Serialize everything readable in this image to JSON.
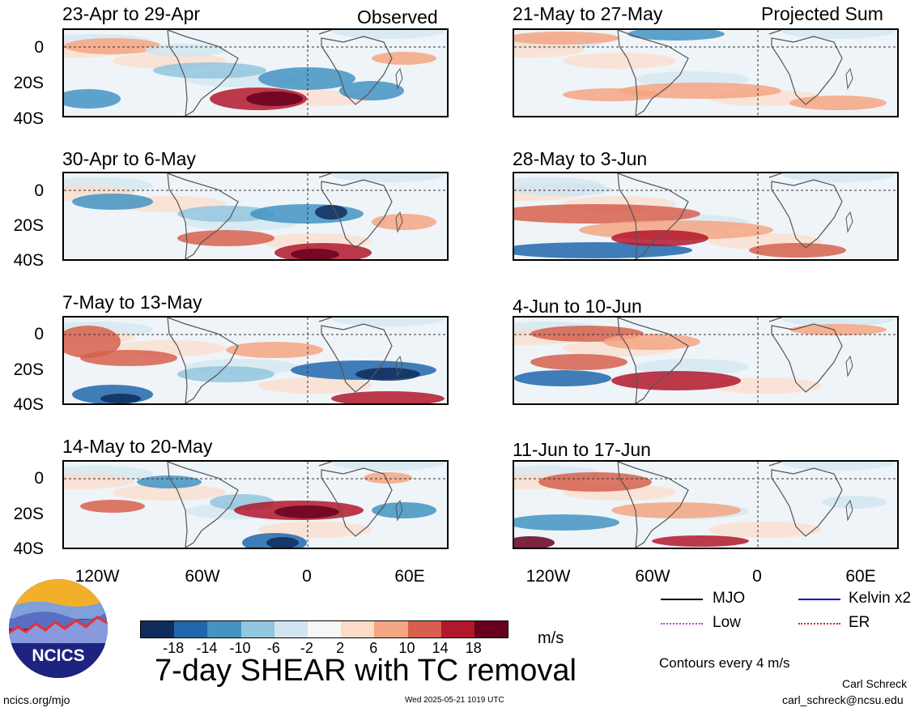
{
  "header": {
    "left": "Observed",
    "right": "Projected Sum"
  },
  "panels_left": [
    {
      "title": "23-Apr to 29-Apr"
    },
    {
      "title": "30-Apr to 6-May"
    },
    {
      "title": "7-May to 13-May"
    },
    {
      "title": "14-May to 20-May"
    }
  ],
  "panels_right": [
    {
      "title": "21-May to 27-May"
    },
    {
      "title": "28-May to 3-Jun"
    },
    {
      "title": "4-Jun to 10-Jun"
    },
    {
      "title": "11-Jun to 17-Jun"
    }
  ],
  "yaxis": [
    "0",
    "20S",
    "40S"
  ],
  "xaxis": [
    "120W",
    "60W",
    "0",
    "60E"
  ],
  "legend": [
    {
      "label": "MJO",
      "color": "#000000"
    },
    {
      "label": "Kelvin x2",
      "color": "#0000cc"
    },
    {
      "label": "Low",
      "color": "#aa44dd"
    },
    {
      "label": "ER",
      "color": "#dd2222"
    }
  ],
  "colorbar": {
    "colors": [
      "#0f2d5c",
      "#2166ac",
      "#4393c3",
      "#92c5de",
      "#d1e5f0",
      "#f7f7f7",
      "#fddbc7",
      "#f4a582",
      "#d6604d",
      "#b2182b",
      "#67001f"
    ],
    "ticks": [
      "-18",
      "-14",
      "-10",
      "-6",
      "-2",
      "2",
      "6",
      "10",
      "14",
      "18"
    ],
    "units": "m/s"
  },
  "footer": {
    "logo_text": "NCICS",
    "main_title": "7-day SHEAR with TC removal",
    "contours": "Contours every 4 m/s",
    "author": "Carl Schreck",
    "email": "carl_schreck@ncsu.edu",
    "url": "ncics.org/mjo",
    "timestamp": "Wed 2025-05-21 1019 UTC"
  }
}
